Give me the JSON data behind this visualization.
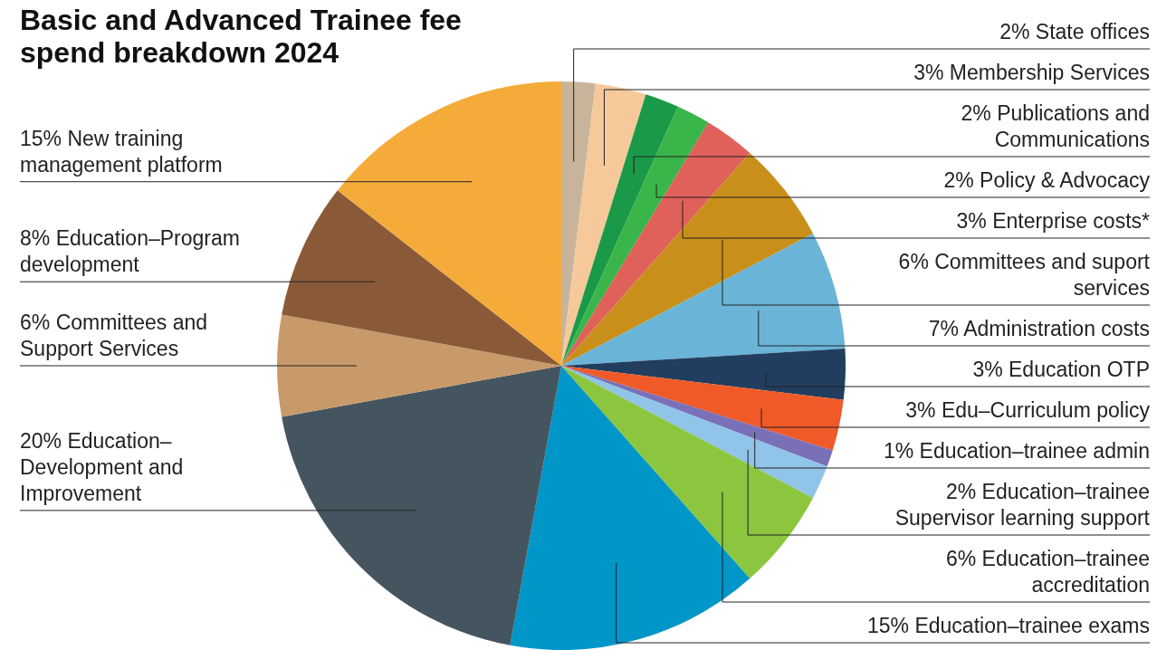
{
  "chart_data": {
    "type": "pie",
    "title": "Basic and Advanced Trainee fee spend breakdown 2024",
    "categories": [
      "State offices",
      "Membership Services",
      "Publications and Communications",
      "Policy & Advocacy",
      "Enterprise costs*",
      "Committees and suport services",
      "Administration costs",
      "Education OTP",
      "Edu–Curriculum policy",
      "Education–trainee admin",
      "Education–trainee Supervisor learning support",
      "Education–trainee accreditation",
      "Education–trainee exams",
      "Education–Development and Improvement",
      "Committees and Support Services",
      "Education–Program development",
      "New training management platform"
    ],
    "values": [
      2,
      3,
      2,
      2,
      3,
      6,
      7,
      3,
      3,
      1,
      2,
      6,
      15,
      20,
      6,
      8,
      15
    ],
    "value_labels": [
      "2%",
      "3%",
      "2%",
      "2%",
      "3%",
      "6%",
      "7%",
      "3%",
      "3%",
      "1%",
      "2%",
      "6%",
      "15%",
      "20%",
      "6%",
      "8%",
      "15%"
    ],
    "colors": [
      "#c8b49a",
      "#f5c99a",
      "#1a9a48",
      "#3ab54a",
      "#e0605a",
      "#c8901a",
      "#6ab4d8",
      "#223e5e",
      "#f05a28",
      "#7a70b8",
      "#90c4e8",
      "#8cc63f",
      "#0096c8",
      "#45555f",
      "#c89a6a",
      "#8a5a38",
      "#f5ab3a"
    ],
    "legend": false
  }
}
